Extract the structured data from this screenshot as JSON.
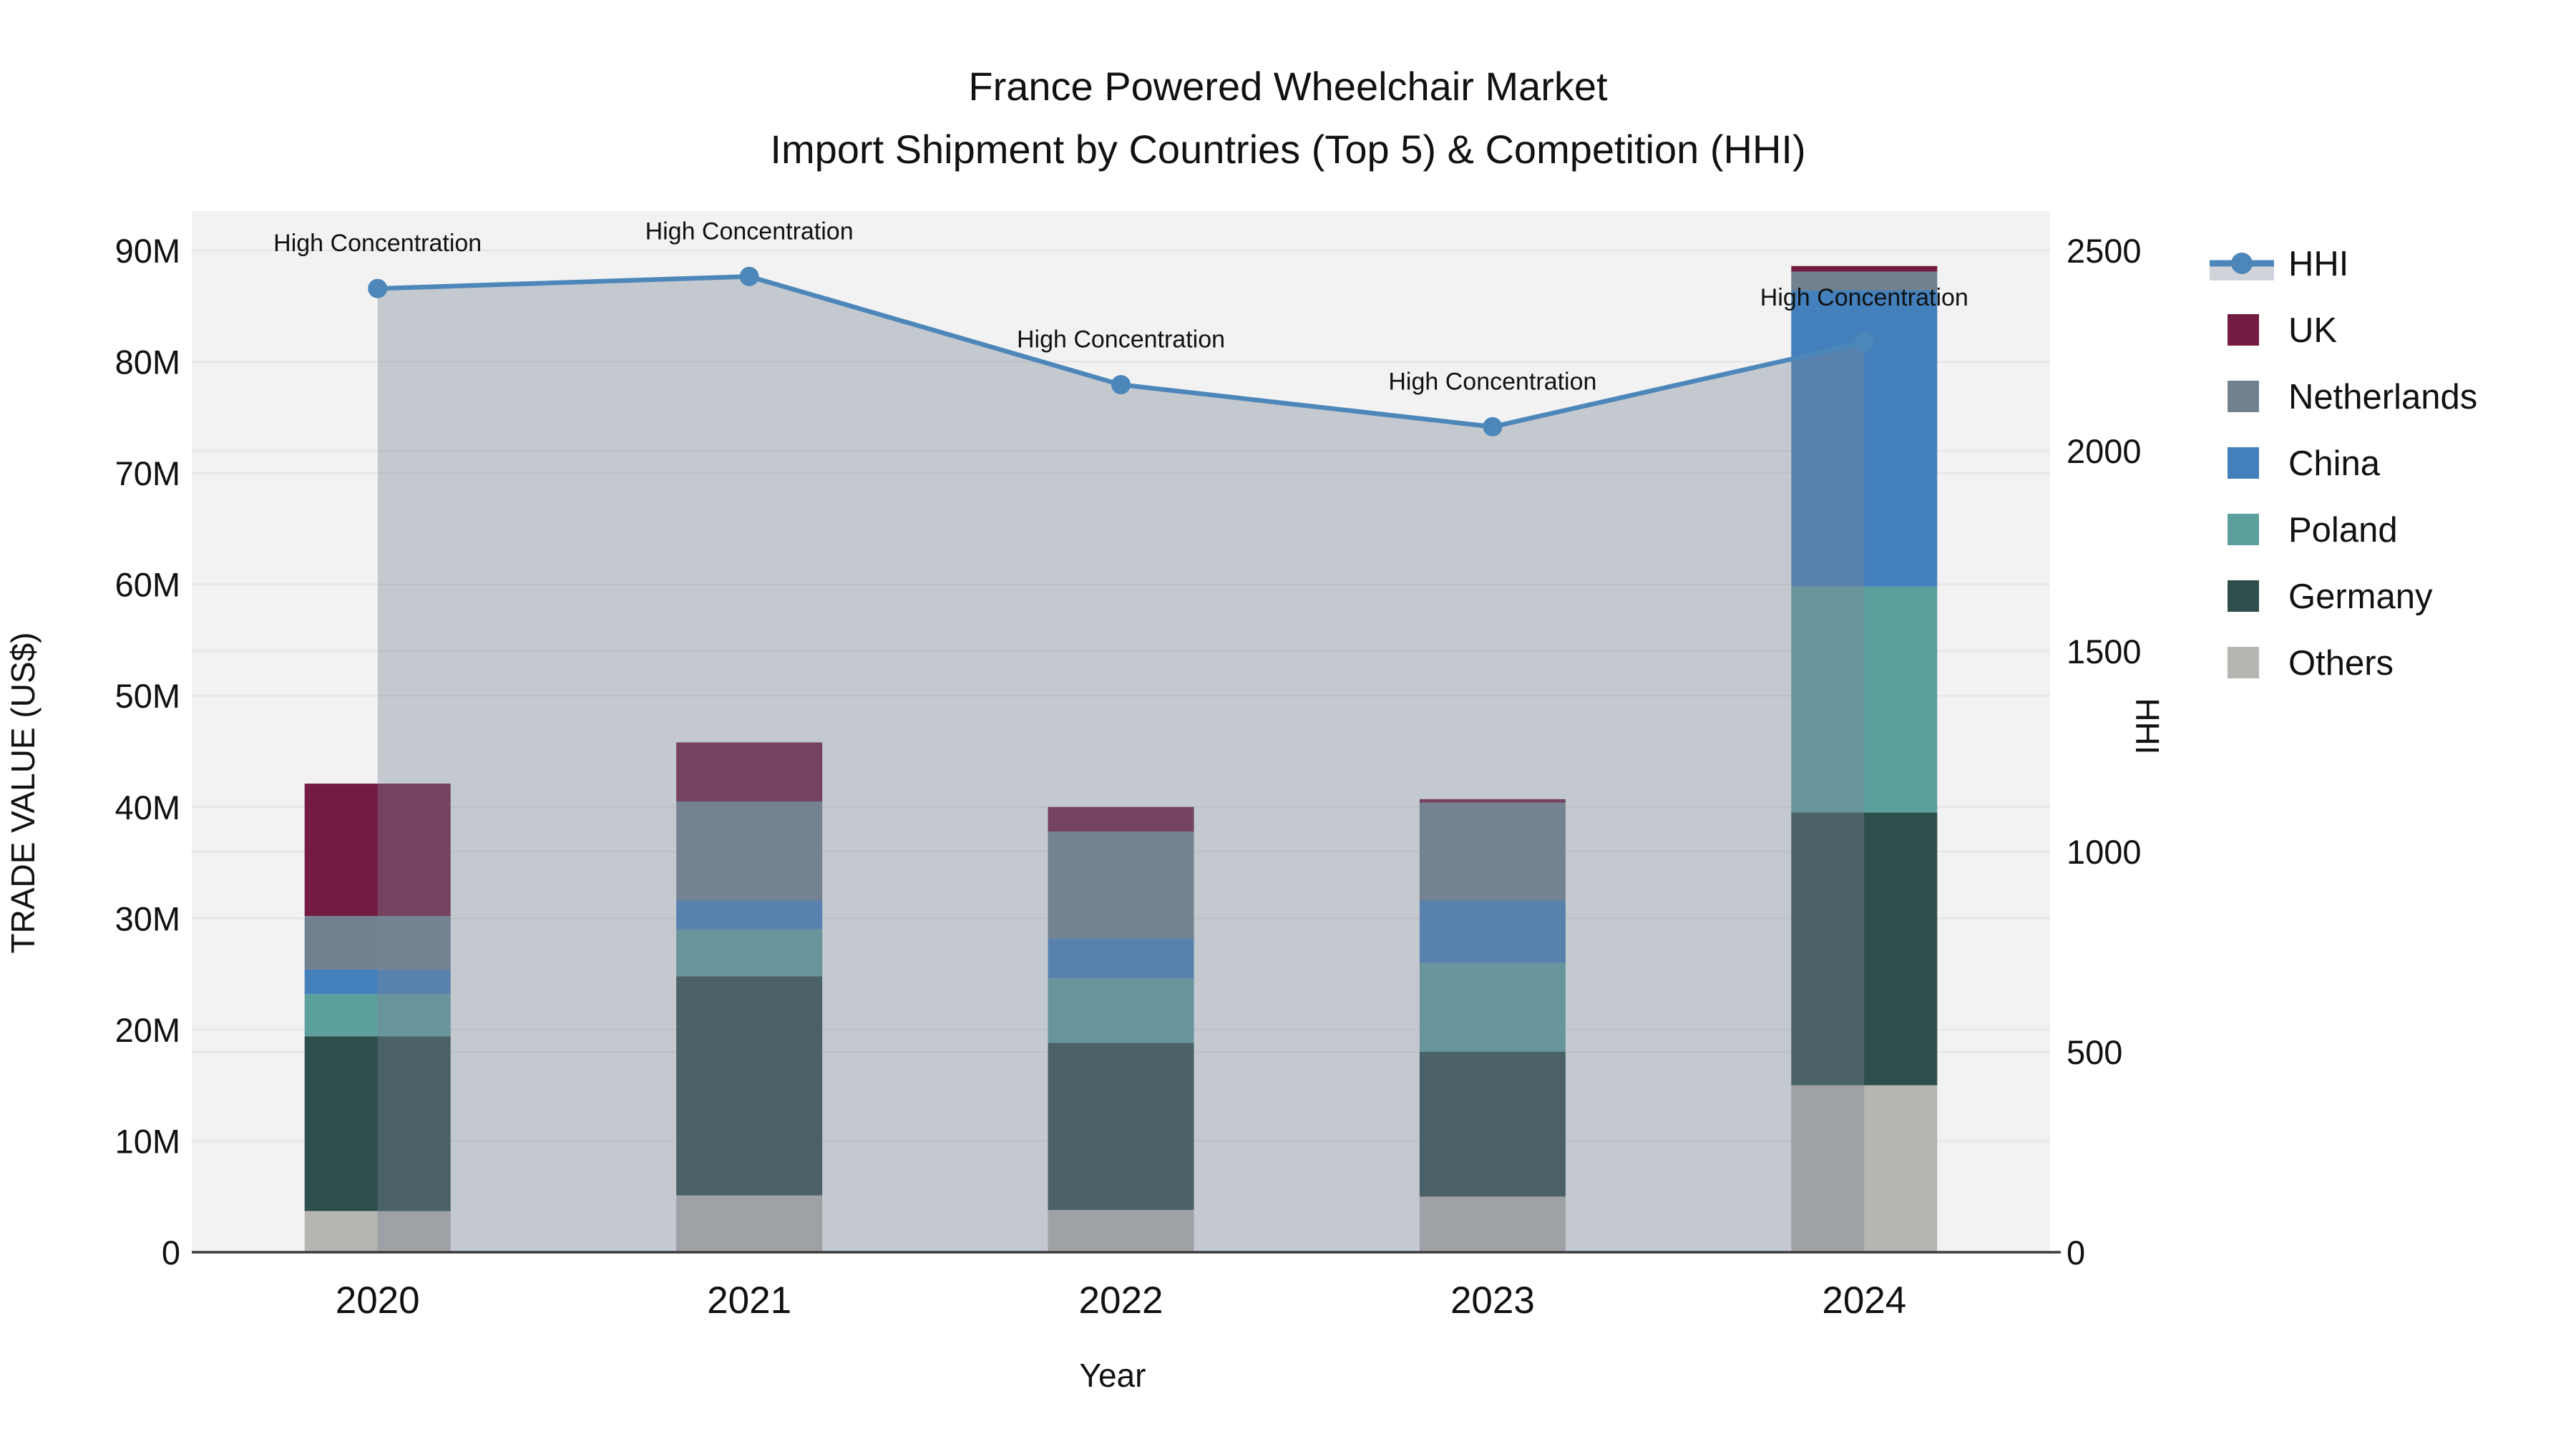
{
  "chart_data": {
    "type": "bar",
    "subtype": "stacked-bars-with-secondary-axis-line",
    "title_line1": "France Powered Wheelchair Market",
    "title_line2": "Import Shipment by Countries (Top 5) & Competition (HHI)",
    "xlabel": "Year",
    "ylabel_left": "TRADE VALUE (US$)",
    "ylabel_right": "HHI",
    "categories": [
      "2020",
      "2021",
      "2022",
      "2023",
      "2024"
    ],
    "value_unit": "USD millions",
    "stack_order": [
      "Others",
      "Germany",
      "Poland",
      "China",
      "Netherlands",
      "UK"
    ],
    "series": [
      {
        "name": "UK",
        "color": "#731b40",
        "values": [
          11.9,
          5.3,
          2.2,
          0.3,
          0.5
        ]
      },
      {
        "name": "Netherlands",
        "color": "#71818e",
        "values": [
          4.8,
          8.9,
          9.6,
          8.8,
          1.7
        ]
      },
      {
        "name": "China",
        "color": "#4480bb",
        "values": [
          2.2,
          2.6,
          3.6,
          5.6,
          26.6
        ]
      },
      {
        "name": "Poland",
        "color": "#5ca09e",
        "values": [
          3.8,
          4.2,
          5.8,
          8.0,
          20.3
        ]
      },
      {
        "name": "Germany",
        "color": "#2e4e4b",
        "values": [
          15.7,
          19.7,
          15.0,
          13.0,
          24.5
        ]
      },
      {
        "name": "Others",
        "color": "#b5b5b1",
        "values": [
          3.7,
          5.1,
          3.8,
          5.0,
          15.0
        ]
      }
    ],
    "bar_totals": [
      42.1,
      45.8,
      40.0,
      40.7,
      88.6
    ],
    "hhi": {
      "name": "HHI",
      "values": [
        2405,
        2435,
        2165,
        2060,
        2270
      ],
      "line_color": "#4d87ba",
      "fill_color": "#788496",
      "fill_opacity": 0.38
    },
    "annotations": [
      {
        "category": "2020",
        "text": "High Concentration"
      },
      {
        "category": "2021",
        "text": "High Concentration"
      },
      {
        "category": "2022",
        "text": "High Concentration"
      },
      {
        "category": "2023",
        "text": "High Concentration"
      },
      {
        "category": "2024",
        "text": "High Concentration"
      }
    ],
    "left_axis": {
      "ticks": [
        "0",
        "10M",
        "20M",
        "30M",
        "40M",
        "50M",
        "60M",
        "70M",
        "80M",
        "90M"
      ],
      "min": 0,
      "max": 90,
      "step": 10
    },
    "right_axis": {
      "ticks": [
        "0",
        "500",
        "1000",
        "1500",
        "2000",
        "2500"
      ],
      "min": 0,
      "max": 2500,
      "step": 500
    },
    "legend_order": [
      "HHI",
      "UK",
      "Netherlands",
      "China",
      "Poland",
      "Germany",
      "Others"
    ],
    "grid": true,
    "legend_position": "right",
    "colors": {
      "plot_background": "#f2f2f2",
      "gridline": "#e6e6e6",
      "axis_line": "#3b3b3b",
      "text": "#111111"
    }
  }
}
